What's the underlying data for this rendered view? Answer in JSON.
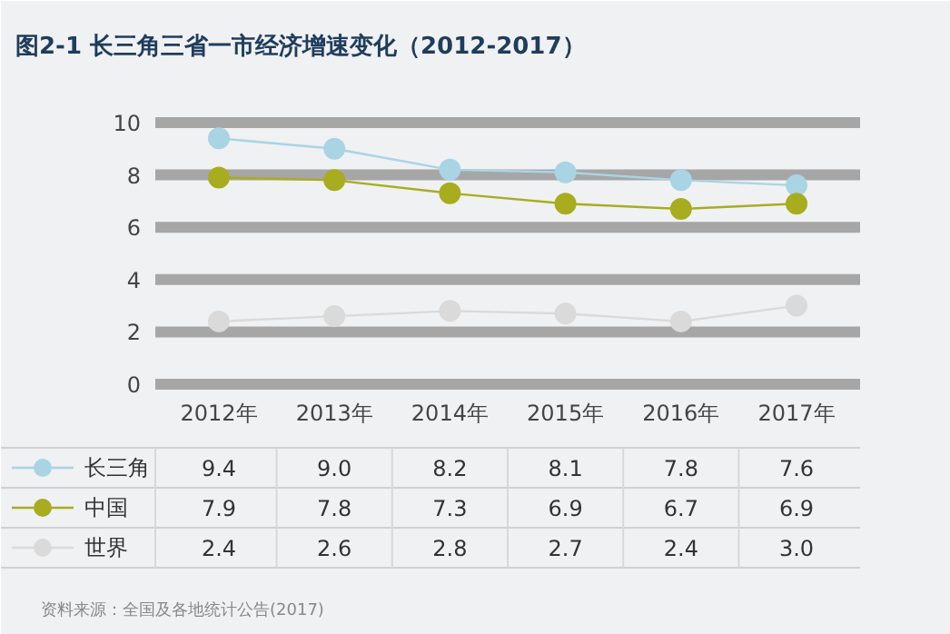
{
  "chart_data": {
    "type": "line",
    "title": "图2-1 长三角三省一市经济增速变化（2012-2017）",
    "categories": [
      "2012年",
      "2013年",
      "2014年",
      "2015年",
      "2016年",
      "2017年"
    ],
    "series": [
      {
        "name": "长三角",
        "color": "#a9d4e4",
        "values": [
          9.4,
          9.0,
          8.2,
          8.1,
          7.8,
          7.6
        ],
        "value_labels": [
          "9.4",
          "9.0",
          "8.2",
          "8.1",
          "7.8",
          "7.6"
        ]
      },
      {
        "name": "中国",
        "color": "#a7ad1f",
        "values": [
          7.9,
          7.8,
          7.3,
          6.9,
          6.7,
          6.9
        ],
        "value_labels": [
          "7.9",
          "7.8",
          "7.3",
          "6.9",
          "6.7",
          "6.9"
        ]
      },
      {
        "name": "世界",
        "color": "#dadada",
        "values": [
          2.4,
          2.6,
          2.8,
          2.7,
          2.4,
          3.0
        ],
        "value_labels": [
          "2.4",
          "2.6",
          "2.8",
          "2.7",
          "2.4",
          "3.0"
        ]
      }
    ],
    "ylim": [
      0,
      10
    ],
    "yticks": [
      0,
      2,
      4,
      6,
      8,
      10
    ],
    "grid": "y",
    "legend": "bottom left",
    "marker": "circle",
    "annotations": [
      "资料来源：全国及各地统计公告(2017)"
    ]
  }
}
